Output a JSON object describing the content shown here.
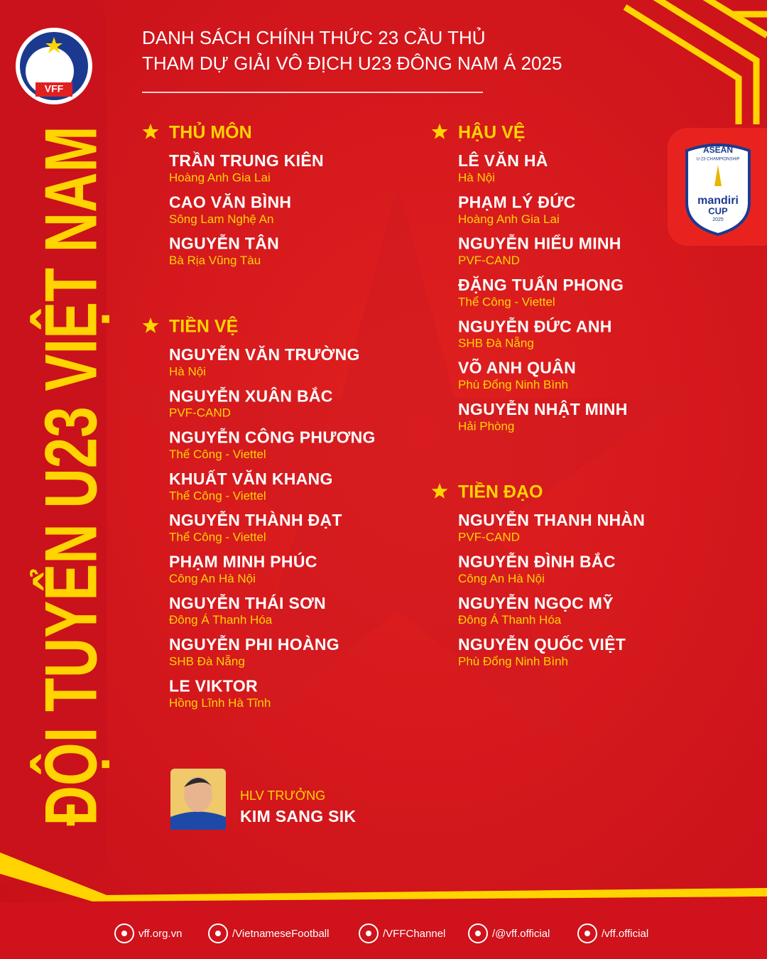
{
  "header": {
    "title_lines": [
      "DANH SÁCH CHÍNH THỨC 23 CẦU THỦ",
      "THAM DỰ GIẢI VÔ ĐỊCH U23 ĐÔNG NAM Á 2025"
    ]
  },
  "vertical_title": "ĐỘI TUYỂN U23 VIỆT NAM",
  "logo": {
    "text": "VFF"
  },
  "badge": {
    "lines": [
      "ASEAN",
      "U-23 CHAMPIONSHIP",
      "mandiri",
      "CUP",
      "2025"
    ]
  },
  "columns": [
    {
      "sections": [
        {
          "heading": "THỦ MÔN",
          "players": [
            {
              "name": "TRẦN TRUNG KIÊN",
              "club": "Hoàng Anh Gia Lai"
            },
            {
              "name": "CAO VĂN BÌNH",
              "club": "Sông Lam Nghệ An"
            },
            {
              "name": "NGUYỄN TÂN",
              "club": "Bà Rịa Vũng Tàu"
            }
          ]
        },
        {
          "heading": "TIỀN VỆ",
          "players": [
            {
              "name": "NGUYỄN VĂN TRƯỜNG",
              "club": "Hà Nội"
            },
            {
              "name": "NGUYỄN XUÂN BẮC",
              "club": "PVF-CAND"
            },
            {
              "name": "NGUYỄN CÔNG PHƯƠNG",
              "club": "Thể Công - Viettel"
            },
            {
              "name": "KHUẤT VĂN KHANG",
              "club": "Thể Công - Viettel"
            },
            {
              "name": "NGUYỄN THÀNH ĐẠT",
              "club": "Thể Công - Viettel"
            },
            {
              "name": "PHẠM MINH PHÚC",
              "club": "Công An Hà Nội"
            },
            {
              "name": "NGUYỄN THÁI SƠN",
              "club": "Đông Á Thanh Hóa"
            },
            {
              "name": "NGUYỄN PHI HOÀNG",
              "club": "SHB Đà Nẵng"
            },
            {
              "name": "LE VIKTOR",
              "club": "Hồng Lĩnh Hà Tĩnh"
            }
          ]
        }
      ]
    },
    {
      "sections": [
        {
          "heading": "HẬU VỆ",
          "players": [
            {
              "name": "LÊ VĂN HÀ",
              "club": "Hà Nội"
            },
            {
              "name": "PHẠM LÝ ĐỨC",
              "club": "Hoàng Anh Gia Lai"
            },
            {
              "name": "NGUYỄN HIỂU MINH",
              "club": "PVF-CAND"
            },
            {
              "name": "ĐẶNG TUẤN PHONG",
              "club": "Thể Công - Viettel"
            },
            {
              "name": "NGUYỄN ĐỨC ANH",
              "club": "SHB Đà Nẵng"
            },
            {
              "name": "VÕ ANH QUÂN",
              "club": "Phù Đổng Ninh Bình"
            },
            {
              "name": "NGUYỄN NHẬT MINH",
              "club": "Hải Phòng"
            }
          ]
        },
        {
          "heading": "TIỀN ĐẠO",
          "players": [
            {
              "name": "NGUYỄN THANH NHÀN",
              "club": "PVF-CAND"
            },
            {
              "name": "NGUYỄN ĐÌNH BẮC",
              "club": "Công An Hà Nội"
            },
            {
              "name": "NGUYỄN NGỌC MỸ",
              "club": "Đông Á Thanh Hóa"
            },
            {
              "name": "NGUYỄN QUỐC VIỆT",
              "club": "Phù Đổng Ninh Bình"
            }
          ]
        }
      ]
    }
  ],
  "coach": {
    "role": "HLV TRƯỞNG",
    "name": "KIM SANG SIK"
  },
  "footer": {
    "links": [
      "vff.org.vn",
      "/VietnameseFootball",
      "/VFFChannel",
      "/@vff.official",
      "/vff.official"
    ]
  }
}
